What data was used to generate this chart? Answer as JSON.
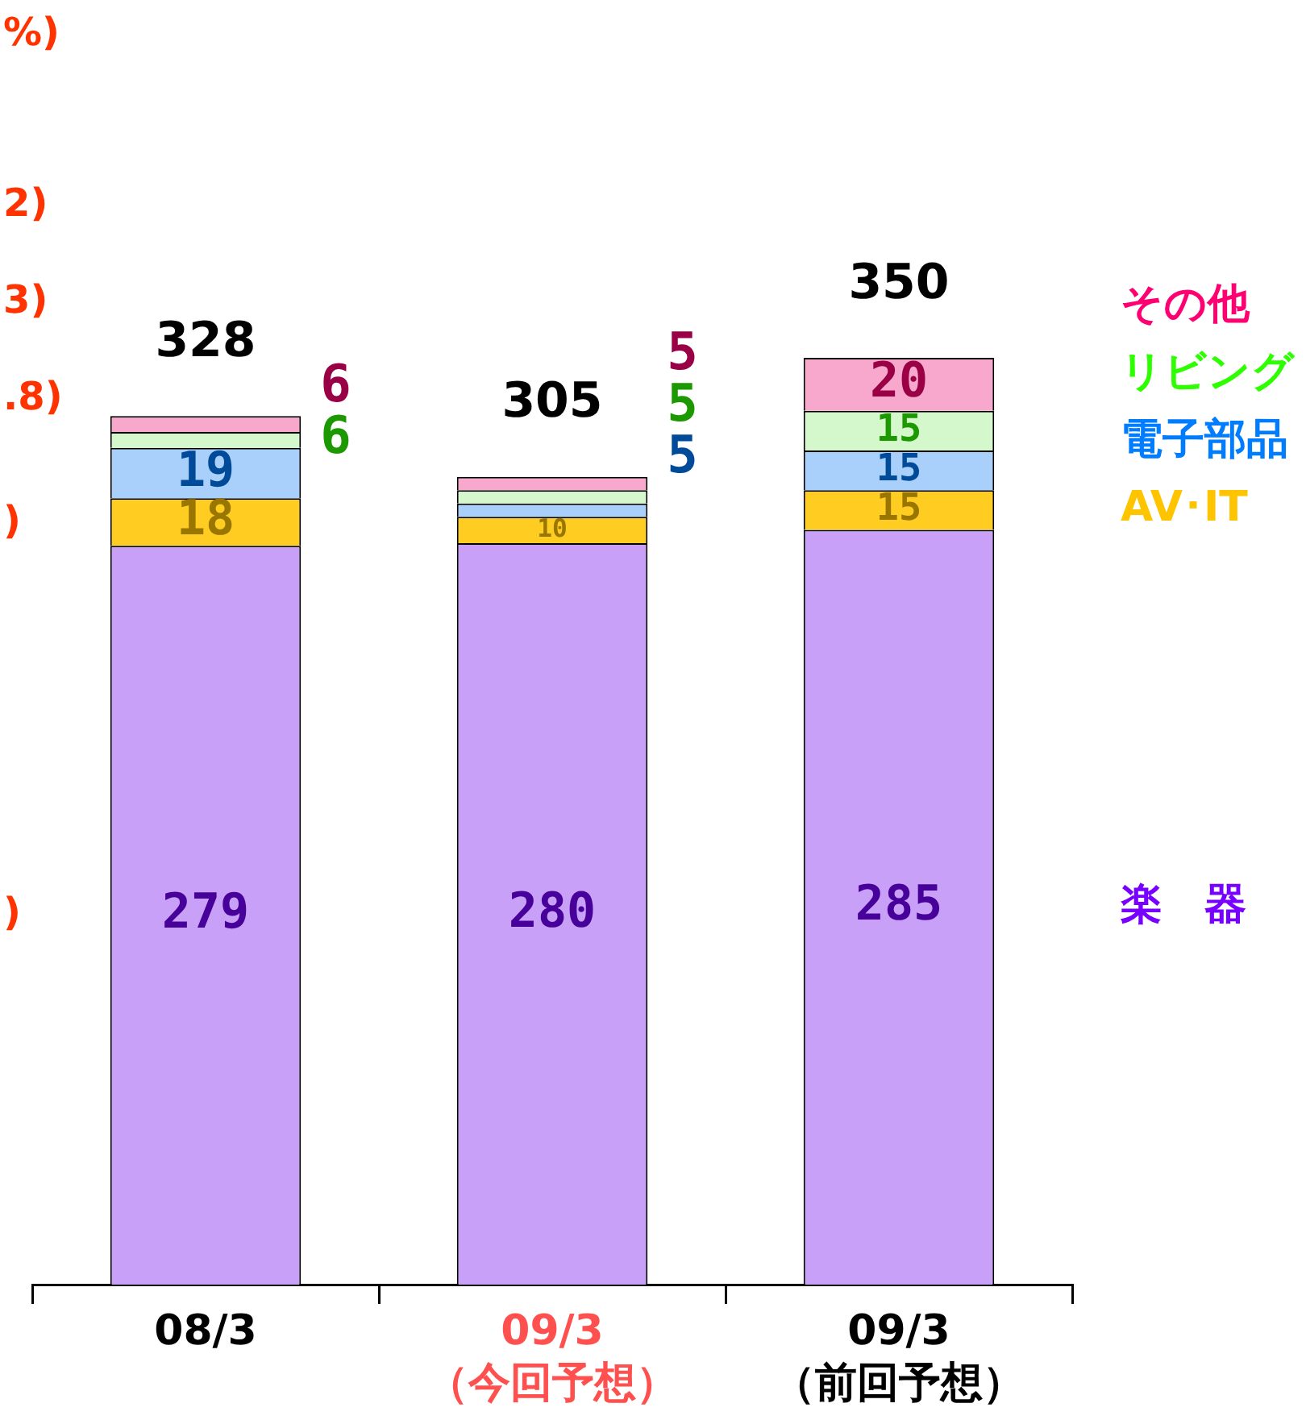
{
  "chart_data": {
    "type": "bar",
    "stacked": true,
    "categories": [
      "08/3",
      "09/3\n（今回予想）",
      "09/3\n（前回予想）"
    ],
    "series": [
      {
        "name": "楽　器",
        "color": "#c9a0f8",
        "values": [
          279,
          280,
          285
        ]
      },
      {
        "name": "AV･IT",
        "color": "#ffcc22",
        "values": [
          18,
          10,
          15
        ]
      },
      {
        "name": "電子部品",
        "color": "#a8d0fa",
        "values": [
          19,
          5,
          15
        ]
      },
      {
        "name": "リビング",
        "color": "#d4f8cc",
        "values": [
          6,
          5,
          15
        ]
      },
      {
        "name": "その他",
        "color": "#f8a8cc",
        "values": [
          6,
          5,
          20
        ]
      }
    ],
    "tick_labels": "x",
    "grid": false,
    "legend": "right",
    "data_labels": true,
    "totals": [
      "328",
      "305",
      "350"
    ],
    "annotations": [
      "%)",
      "2)",
      "3)",
      ".8)",
      ")",
      ")"
    ]
  }
}
